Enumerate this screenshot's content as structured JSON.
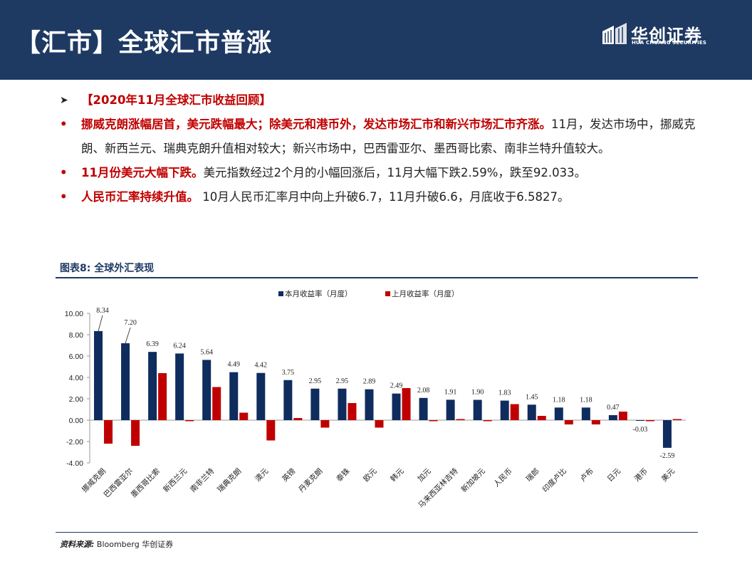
{
  "header": {
    "title": "【汇市】全球汇市普涨",
    "logo_name": "华创证券",
    "logo_sub": "HUA CHUANG SECURITIES"
  },
  "bullets": {
    "heading": "【2020年11月全球汇市收益回顾】",
    "b1_bold": "挪威克朗涨幅居首，美元跌幅最大；除美元和港币外，发达市场汇市和新兴市场汇市齐涨。",
    "b1_text": "11月，发达市场中，挪威克朗、新西兰元、瑞典克朗升值相对较大；新兴市场中，巴西雷亚尔、墨西哥比索、南非兰特升值较大。",
    "b2_bold": "11月份美元大幅下跌。",
    "b2_text": "美元指数经过2个月的小幅回涨后，11月大幅下跌2.59%，跌至92.033。",
    "b3_bold": "人民币汇率持续升值。",
    "b3_text": " 10月人民币汇率月中向上升破6.7，11月升破6.6，月底收于6.5827。"
  },
  "figure": {
    "title": "图表8:  全球外汇表现",
    "source_label": "资料来源:",
    "source_text": " Bloomberg 华创证券"
  },
  "colors": {
    "navy": "#1e3a63",
    "accent_red": "#c00000",
    "series_current": "#0f2c5e",
    "series_prev": "#c00000"
  },
  "chart_data": {
    "type": "bar",
    "categories": [
      "挪威克朗",
      "巴西雷亚尔",
      "墨西哥比索",
      "新西兰元",
      "南非兰特",
      "瑞典克朗",
      "澳元",
      "英镑",
      "丹麦克朗",
      "泰铢",
      "欧元",
      "韩元",
      "加元",
      "马来西亚林吉特",
      "新加坡元",
      "人民币",
      "瑞郎",
      "印度卢比",
      "卢布",
      "日元",
      "港币",
      "美元"
    ],
    "series": [
      {
        "name": "本月收益率（月度）",
        "values": [
          8.34,
          7.2,
          6.39,
          6.24,
          5.64,
          4.49,
          4.42,
          3.75,
          2.95,
          2.95,
          2.89,
          2.49,
          2.08,
          1.91,
          1.9,
          1.83,
          1.45,
          1.18,
          1.18,
          0.47,
          -0.03,
          -2.59
        ],
        "labels": [
          "8.34",
          "7.20",
          "6.39",
          "6.24",
          "5.64",
          "4.49",
          "4.42",
          "3.75",
          "2.95",
          "2.95",
          "2.89",
          "2.49",
          "2.08",
          "1.91",
          "1.90",
          "1.83",
          "1.45",
          "1.18",
          "1.18",
          "0.47",
          "-0.03",
          "-2.59"
        ]
      },
      {
        "name": "上月收益率（月度）",
        "values": [
          -2.2,
          -2.4,
          4.4,
          -0.1,
          3.1,
          0.7,
          -1.9,
          0.2,
          -0.7,
          1.6,
          -0.7,
          3.0,
          -0.1,
          0.1,
          -0.1,
          1.5,
          0.4,
          -0.4,
          -0.4,
          0.8,
          -0.1,
          0.1
        ]
      }
    ],
    "yticks": [
      "10.00",
      "8.00",
      "6.00",
      "4.00",
      "2.00",
      "0.00",
      "-2.00",
      "-4.00"
    ],
    "ylim": [
      -4,
      10
    ],
    "legend_position": "top-center",
    "title": "",
    "xlabel": "",
    "ylabel": ""
  }
}
